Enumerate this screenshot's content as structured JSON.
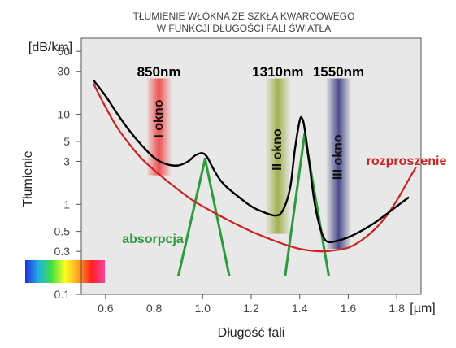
{
  "chart_data": {
    "type": "line",
    "title": [
      "TŁUMIENIE WŁÓKNA ZE SZKŁA KWARCOWEGO",
      "W FUNKCJI DŁUGOŚCI FALI ŚWIATŁA"
    ],
    "xlabel": "Długość fali",
    "ylabel": "Tłumienie",
    "x_unit": "[µm]",
    "y_unit": "[dB/km]",
    "xlim": [
      0.5,
      1.9
    ],
    "ylim": [
      0.1,
      70
    ],
    "yscale": "log",
    "x_ticks": [
      0.6,
      0.8,
      1.0,
      1.2,
      1.4,
      1.6,
      1.8
    ],
    "x_tick_labels": [
      "0.6",
      "0.8",
      "1.0",
      "1.2",
      "1.4",
      "1.6",
      "1.8"
    ],
    "y_ticks": [
      0.1,
      0.3,
      0.5,
      1,
      3,
      5,
      10,
      30,
      50
    ],
    "y_tick_labels": [
      "0.1",
      "0.3",
      "0.5",
      "1",
      "3",
      "5",
      "10",
      "30",
      "50"
    ],
    "grid": false,
    "windows": [
      {
        "label": "850nm",
        "name": "I okno",
        "x_from": 0.77,
        "x_to": 0.87,
        "y_from": 2.1,
        "y_to": 25,
        "color": "#ef4040"
      },
      {
        "label": "1310nm",
        "name": "II okno",
        "x_from": 1.26,
        "x_to": 1.36,
        "y_from": 0.47,
        "y_to": 25,
        "color": "#9aaa3e"
      },
      {
        "label": "1550nm",
        "name": "III okno",
        "x_from": 1.51,
        "x_to": 1.61,
        "y_from": 0.32,
        "y_to": 25,
        "color": "#3a3a80"
      }
    ],
    "series": [
      {
        "name": "",
        "color": "#000000",
        "x": [
          0.55,
          0.6,
          0.65,
          0.7,
          0.75,
          0.8,
          0.85,
          0.9,
          0.94,
          0.97,
          1.0,
          1.02,
          1.04,
          1.07,
          1.1,
          1.15,
          1.2,
          1.25,
          1.3,
          1.33,
          1.36,
          1.38,
          1.4,
          1.41,
          1.42,
          1.44,
          1.46,
          1.48,
          1.5,
          1.52,
          1.55,
          1.6,
          1.65,
          1.7,
          1.75,
          1.8,
          1.85
        ],
        "y": [
          24,
          16,
          10,
          6.5,
          4.5,
          3.3,
          2.8,
          2.7,
          3.0,
          3.5,
          3.7,
          3.3,
          2.6,
          1.9,
          1.55,
          1.2,
          0.95,
          0.82,
          0.75,
          0.85,
          1.5,
          4.0,
          8.5,
          9.0,
          7.0,
          2.8,
          1.1,
          0.6,
          0.42,
          0.38,
          0.39,
          0.43,
          0.5,
          0.6,
          0.75,
          0.95,
          1.2
        ]
      },
      {
        "name": "rozproszenie",
        "color": "#cc2222",
        "x": [
          0.55,
          0.6,
          0.65,
          0.7,
          0.75,
          0.8,
          0.85,
          0.9,
          0.95,
          1.0,
          1.05,
          1.1,
          1.15,
          1.2,
          1.25,
          1.3,
          1.35,
          1.4,
          1.45,
          1.5,
          1.55,
          1.6,
          1.65,
          1.7,
          1.75,
          1.8,
          1.85,
          1.88
        ],
        "y": [
          22,
          12,
          7.0,
          4.6,
          3.2,
          2.4,
          1.85,
          1.45,
          1.15,
          0.95,
          0.8,
          0.68,
          0.58,
          0.5,
          0.44,
          0.39,
          0.35,
          0.32,
          0.305,
          0.3,
          0.31,
          0.33,
          0.39,
          0.5,
          0.7,
          1.1,
          1.9,
          2.6
        ]
      },
      {
        "name": "absorpcja",
        "color": "#2e9a3e",
        "peaks": [
          {
            "x": [
              0.9,
              1.01,
              1.11
            ],
            "y": [
              0.16,
              3.2,
              0.16
            ]
          },
          {
            "x": [
              1.34,
              1.42,
              1.52
            ],
            "y": [
              0.16,
              6.0,
              0.16
            ]
          }
        ]
      }
    ],
    "spectrum_bar": {
      "colors": [
        "#2230e0",
        "#20b0e0",
        "#40e040",
        "#ffff20",
        "#ffa020",
        "#ff2020",
        "#ff40a0"
      ]
    }
  }
}
